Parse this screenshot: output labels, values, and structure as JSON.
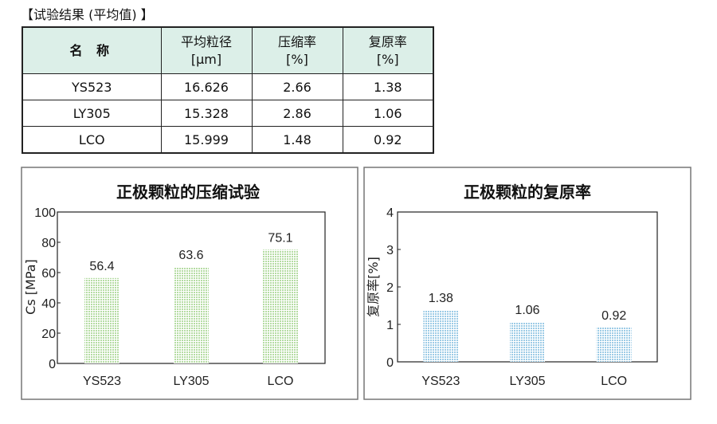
{
  "caption": "【试验结果 (平均值) 】",
  "table": {
    "headers": [
      {
        "line1": "名 称",
        "line2": ""
      },
      {
        "line1": "平均粒径",
        "line2": "[μm]"
      },
      {
        "line1": "压缩率",
        "line2": "[%]"
      },
      {
        "line1": "复原率",
        "line2": "[%]"
      }
    ],
    "rows": [
      [
        "YS523",
        "16.626",
        "2.66",
        "1.38"
      ],
      [
        "LY305",
        "15.328",
        "2.86",
        "1.06"
      ],
      [
        "LCO",
        "15.999",
        "1.48",
        "0.92"
      ]
    ]
  },
  "chart_data": [
    {
      "type": "bar",
      "title": "正极颗粒的压缩试验",
      "ylabel": "Cs [MPa]",
      "xlabel": "",
      "categories": [
        "YS523",
        "LY305",
        "LCO"
      ],
      "values": [
        56.4,
        63.6,
        75.1
      ],
      "value_labels": [
        "56.4",
        "63.6",
        "75.1"
      ],
      "ylim": [
        0,
        100
      ],
      "yticks": [
        "0",
        "20",
        "40",
        "60",
        "80",
        "100"
      ],
      "bar_color": "#b5dca3",
      "grid": false
    },
    {
      "type": "bar",
      "title": "正极颗粒的复原率",
      "ylabel": "复原率[%]",
      "xlabel": "",
      "categories": [
        "YS523",
        "LY305",
        "LCO"
      ],
      "values": [
        1.38,
        1.06,
        0.92
      ],
      "value_labels": [
        "1.38",
        "1.06",
        "0.92"
      ],
      "ylim": [
        0,
        4
      ],
      "yticks": [
        "0",
        "1",
        "2",
        "3",
        "4"
      ],
      "bar_color": "#9ccbe6",
      "grid": false
    }
  ]
}
